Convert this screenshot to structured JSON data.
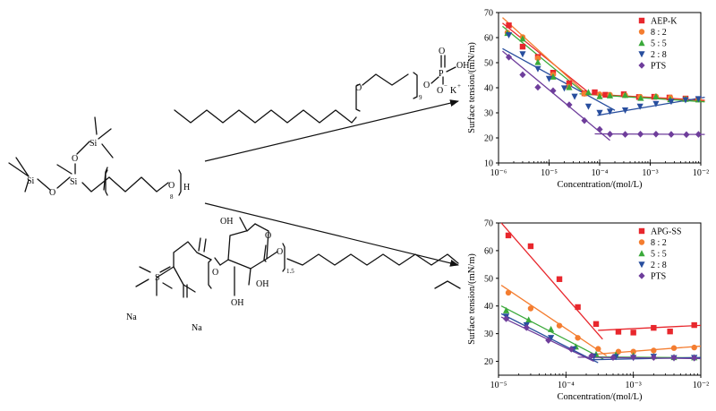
{
  "structures": {
    "pts": {
      "si_label": "Si",
      "o_label": "O",
      "h_label": "H",
      "repeat_count": "8"
    },
    "aep": {
      "o_label": "O",
      "p_label": "P",
      "oh_label": "OH",
      "o_minus": "O",
      "k_plus": "K",
      "repeat_count": "9"
    },
    "apg": {
      "oh_label": "OH",
      "oh_label2": "OH",
      "oh_label3": "OH",
      "o_label": "O",
      "s_label": "S",
      "repeat_count": "1.5",
      "na_label": "Na",
      "na_label2": "Na"
    }
  },
  "chart_data": [
    {
      "type": "scatter",
      "title": "",
      "xlabel": "Concentration/(mol/L)",
      "ylabel": "Surface tension/(mN/m)",
      "xscale": "log",
      "xlim": [
        1e-06,
        0.01
      ],
      "ylim": [
        10,
        70
      ],
      "xticks": [
        1e-06,
        1e-05,
        0.0001,
        0.001,
        0.01
      ],
      "xtick_labels": [
        "10⁻⁶",
        "10⁻⁵",
        "10⁻⁴",
        "10⁻³",
        "10⁻²"
      ],
      "yticks": [
        10,
        20,
        30,
        40,
        50,
        60,
        70
      ],
      "ytick_labels": [
        "10",
        "20",
        "30",
        "40",
        "50",
        "60",
        "70"
      ],
      "legend_position": "top-right",
      "series": [
        {
          "name": "AEP-K",
          "color": "#e8272d",
          "marker": "square",
          "x": [
            1.6e-06,
            3e-06,
            6e-06,
            1.2e-05,
            2.5e-05,
            5e-05,
            8e-05,
            0.00013,
            0.0003,
            0.0006,
            0.0012,
            0.0024,
            0.005,
            0.009
          ],
          "y": [
            64.9,
            56.4,
            52.3,
            46,
            41.8,
            37.8,
            38.2,
            37.2,
            37.4,
            36.3,
            36.4,
            36.1,
            35.7,
            35.4
          ],
          "fit": [
            [
              [
                1.2e-06,
                65.8
              ],
              [
                5.5e-05,
                38.8
              ]
            ],
            [
              [
                5e-05,
                37.6
              ],
              [
                0.012,
                35
              ]
            ]
          ]
        },
        {
          "name": "8 : 2",
          "color": "#f47d30",
          "marker": "circle",
          "x": [
            1.5e-06,
            3e-06,
            6e-06,
            1.2e-05,
            2.4e-05,
            5e-05,
            0.0001,
            0.00016,
            0.00032,
            0.00063,
            0.0013,
            0.0025,
            0.005,
            0.009
          ],
          "y": [
            62,
            60.2,
            51.8,
            45.2,
            40.4,
            37.6,
            37.4,
            37.2,
            37,
            36.4,
            36.5,
            36.1,
            35.6,
            35.5
          ],
          "fit": [
            [
              [
                1.2e-06,
                68
              ],
              [
                6e-05,
                36.8
              ]
            ],
            [
              [
                5e-05,
                37.4
              ],
              [
                0.012,
                34.6
              ]
            ]
          ]
        },
        {
          "name": "5 : 5",
          "color": "#3aa93a",
          "marker": "triangle-up",
          "x": [
            1.5e-06,
            3e-06,
            6e-06,
            1.2e-05,
            2.5e-05,
            6e-05,
            0.0001,
            0.00016,
            0.00032,
            0.00065,
            0.0013,
            0.0025,
            0.005,
            0.009
          ],
          "y": [
            61.8,
            59.6,
            50.2,
            44.4,
            40.2,
            38.2,
            36.6,
            36.9,
            37.1,
            35.9,
            36.5,
            35.4,
            35.5,
            35.3
          ],
          "fit": [
            [
              [
                1.2e-06,
                64.5
              ],
              [
                5e-05,
                37.8
              ]
            ],
            [
              [
                4e-05,
                37.6
              ],
              [
                0.012,
                34.4
              ]
            ]
          ]
        },
        {
          "name": "2 : 8",
          "color": "#284e9e",
          "marker": "triangle-down",
          "x": [
            1.6e-06,
            3e-06,
            6e-06,
            1e-05,
            2e-05,
            3.2e-05,
            6e-05,
            0.0001,
            0.00016,
            0.00032,
            0.00063,
            0.0013,
            0.0026,
            0.005,
            0.009
          ],
          "y": [
            61,
            53.4,
            47.5,
            43.6,
            39.8,
            36.5,
            32.5,
            30,
            30.5,
            31,
            32.5,
            33.6,
            34.5,
            35.1,
            35.5
          ],
          "fit": [
            [
              [
                1.2e-06,
                55.6
              ],
              [
                0.0002,
                31
              ]
            ],
            [
              [
                9e-05,
                29
              ],
              [
                0.012,
                36.2
              ]
            ]
          ]
        },
        {
          "name": "PTS",
          "color": "#6e3d9b",
          "marker": "diamond",
          "x": [
            1.6e-06,
            3e-06,
            6e-06,
            1.2e-05,
            2.5e-05,
            5e-05,
            0.0001,
            0.00016,
            0.00032,
            0.00064,
            0.0013,
            0.0026,
            0.0052,
            0.009
          ],
          "y": [
            52.2,
            45.2,
            40.2,
            38.8,
            33.2,
            26.9,
            23.4,
            21.5,
            21.4,
            21.5,
            21.5,
            21.4,
            21.3,
            21.4
          ],
          "fit": [
            [
              [
                1.2e-06,
                54.6
              ],
              [
                0.00016,
                19
              ]
            ],
            [
              [
                8e-05,
                21.6
              ],
              [
                0.012,
                21.4
              ]
            ]
          ]
        }
      ]
    },
    {
      "type": "scatter",
      "title": "",
      "xlabel": "Concentration/(mol/L)",
      "ylabel": "Surface tension/(mN/m)",
      "xscale": "log",
      "xlim": [
        1e-05,
        0.01
      ],
      "ylim": [
        15,
        70
      ],
      "xticks": [
        1e-05,
        0.0001,
        0.001,
        0.01
      ],
      "xtick_labels": [
        "10⁻⁵",
        "10⁻⁴",
        "10⁻³",
        "10⁻²"
      ],
      "yticks": [
        20,
        30,
        40,
        50,
        60,
        70
      ],
      "ytick_labels": [
        "20",
        "30",
        "40",
        "50",
        "60",
        "70"
      ],
      "legend_position": "top-right",
      "series": [
        {
          "name": "APG-SS",
          "color": "#e8272d",
          "marker": "square",
          "x": [
            1.4e-05,
            3e-05,
            8e-05,
            0.00015,
            0.00028,
            0.0006,
            0.001,
            0.002,
            0.0035,
            0.008
          ],
          "y": [
            65.5,
            61.6,
            49.7,
            39.6,
            33.5,
            30.7,
            30.4,
            32.1,
            30.8,
            33.1
          ],
          "fit": [
            [
              [
                1.1e-05,
                70
              ],
              [
                0.00035,
                28
              ]
            ],
            [
              [
                0.0003,
                31.2
              ],
              [
                0.01,
                33
              ]
            ]
          ]
        },
        {
          "name": "8 : 2",
          "color": "#f47d30",
          "marker": "circle",
          "x": [
            1.4e-05,
            3e-05,
            8e-05,
            0.00015,
            0.0003,
            0.0006,
            0.001,
            0.002,
            0.004,
            0.008
          ],
          "y": [
            44.8,
            39.1,
            32.9,
            28.5,
            24.5,
            23.5,
            23.5,
            23.9,
            24.8,
            25
          ],
          "fit": [
            [
              [
                1.1e-05,
                47.5
              ],
              [
                0.0004,
                22
              ]
            ],
            [
              [
                0.00028,
                22.6
              ],
              [
                0.01,
                25.5
              ]
            ]
          ]
        },
        {
          "name": "5 : 5",
          "color": "#3aa93a",
          "marker": "triangle-up",
          "x": [
            1.3e-05,
            2.8e-05,
            6e-05,
            0.00014,
            0.00028,
            0.00055,
            0.001,
            0.002,
            0.004,
            0.008
          ],
          "y": [
            38.4,
            35,
            31.6,
            25.3,
            22.6,
            22.4,
            22.1,
            21.8,
            21.5,
            21.4
          ],
          "fit": [
            [
              [
                1.1e-05,
                40
              ],
              [
                0.00036,
                20.8
              ]
            ],
            [
              [
                0.0003,
                21.6
              ],
              [
                0.01,
                21.3
              ]
            ]
          ]
        },
        {
          "name": "2 : 8",
          "color": "#284e9e",
          "marker": "triangle-down",
          "x": [
            1.3e-05,
            2.6e-05,
            6e-05,
            0.00013,
            0.00026,
            0.00055,
            0.001,
            0.002,
            0.004,
            0.008
          ],
          "y": [
            36.2,
            33.1,
            28.5,
            24.4,
            21.8,
            21.6,
            21.3,
            21.7,
            21.2,
            21.3
          ],
          "fit": [
            [
              [
                1.1e-05,
                37.2
              ],
              [
                0.0003,
                19.5
              ]
            ],
            [
              [
                0.00024,
                20.6
              ],
              [
                0.01,
                21.4
              ]
            ]
          ]
        },
        {
          "name": "PTS",
          "color": "#6e3d9b",
          "marker": "diamond",
          "x": [
            1.3e-05,
            2.6e-05,
            5.5e-05,
            0.00012,
            0.00024,
            0.0005,
            0.001,
            0.002,
            0.004,
            0.008
          ],
          "y": [
            35.4,
            32.2,
            27.6,
            24.4,
            22,
            21.4,
            21.5,
            21.4,
            21.3,
            21.2
          ],
          "fit": [
            [
              [
                1.1e-05,
                36
              ],
              [
                0.00026,
                20
              ]
            ],
            [
              [
                0.00015,
                21.5
              ],
              [
                0.01,
                21
              ]
            ]
          ]
        }
      ]
    }
  ]
}
